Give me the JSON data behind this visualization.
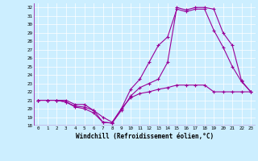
{
  "xlabel": "Windchill (Refroidissement éolien,°C)",
  "background_color": "#cceeff",
  "grid_color": "#ffffff",
  "line_color": "#990099",
  "xlim": [
    -0.5,
    23.5
  ],
  "ylim": [
    18,
    32.5
  ],
  "xticks": [
    0,
    1,
    2,
    3,
    4,
    5,
    6,
    7,
    8,
    9,
    10,
    11,
    12,
    13,
    14,
    15,
    16,
    17,
    18,
    19,
    20,
    21,
    22,
    23
  ],
  "yticks": [
    18,
    19,
    20,
    21,
    22,
    23,
    24,
    25,
    26,
    27,
    28,
    29,
    30,
    31,
    32
  ],
  "series": [
    [
      21.0,
      21.0,
      21.0,
      21.0,
      20.5,
      20.5,
      19.8,
      19.0,
      18.4,
      20.0,
      21.3,
      21.8,
      22.0,
      22.3,
      22.5,
      22.8,
      22.8,
      22.8,
      22.8,
      22.0,
      22.0,
      22.0,
      22.0,
      22.0
    ],
    [
      21.0,
      21.0,
      21.0,
      20.8,
      20.2,
      20.0,
      19.5,
      18.4,
      18.3,
      20.0,
      22.3,
      23.5,
      25.5,
      27.5,
      28.5,
      31.8,
      31.5,
      31.8,
      31.8,
      29.3,
      27.3,
      25.0,
      23.2,
      22.0
    ],
    [
      21.0,
      21.0,
      21.0,
      20.8,
      20.3,
      20.2,
      19.8,
      18.4,
      18.3,
      19.8,
      21.5,
      22.5,
      23.0,
      23.5,
      25.5,
      32.0,
      31.7,
      32.0,
      32.0,
      31.8,
      29.0,
      27.5,
      23.3,
      22.0
    ]
  ]
}
